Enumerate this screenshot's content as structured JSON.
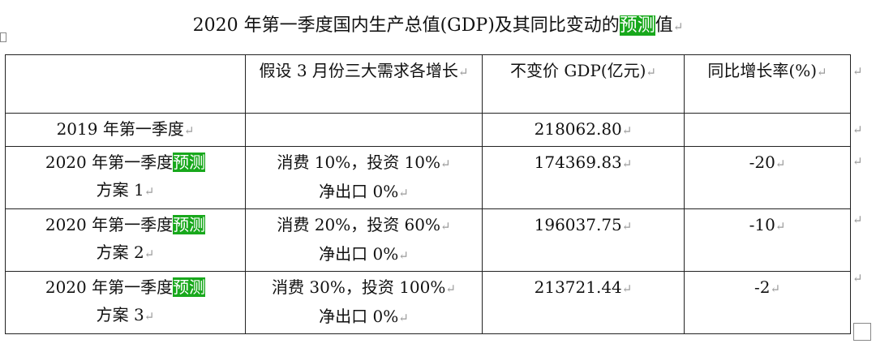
{
  "title": {
    "before": "2020 年第一季度国内生产总值(GDP)及其同比变动的",
    "highlight": "预测",
    "after": "值"
  },
  "table": {
    "header": [
      "假设 3 月份三大需求各增长",
      "不变价 GDP(亿元)",
      "同比增长率(%)"
    ],
    "rows": [
      {
        "label": "2019 年第一季度",
        "value": "218062.80"
      },
      {
        "label": "2020 年第一季度",
        "highlight": "预测",
        "label_after": "方案 1",
        "assumption": [
          "消费 10%，投资 10%",
          "净出口 0%"
        ],
        "value": "174369.83",
        "growth": "-20"
      },
      {
        "label": "2020 年第一季度",
        "highlight": "预测",
        "label_after": "方案 2",
        "assumption": [
          "消费 20%，投资 60%",
          "净出口 0%"
        ],
        "value": "196037.75",
        "growth": "-10"
      },
      {
        "label": "2020 年第一季度",
        "highlight": "预测",
        "label_after": "方案 3",
        "assumption": [
          "消费 30%，投资 100%",
          "净出口 0%"
        ],
        "value": "213721.44",
        "growth": "-2"
      }
    ]
  }
}
